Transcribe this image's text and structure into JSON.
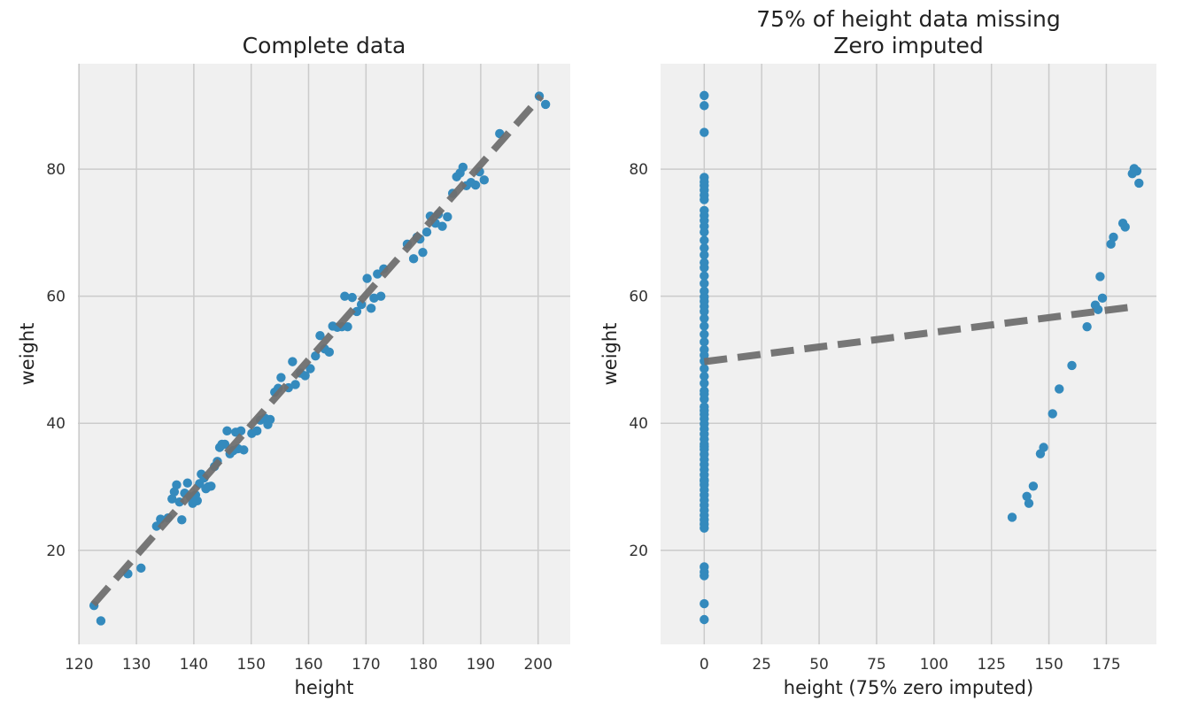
{
  "chart_data": [
    {
      "type": "scatter",
      "title": "Complete data",
      "xlabel": "height",
      "ylabel": "weight",
      "xlim": [
        119.8,
        205.6
      ],
      "ylim": [
        5.2,
        96.6
      ],
      "xticks": [
        120,
        130,
        140,
        150,
        160,
        170,
        180,
        190,
        200
      ],
      "yticks": [
        20,
        40,
        60,
        80
      ],
      "grid": true,
      "colors": {
        "points": "#348abd",
        "fit_line": "#6f6f6f",
        "background": "#f0f0f0",
        "grid": "#cbcbcb"
      },
      "fit_line": {
        "style": "dashed",
        "x": [
          122.5,
          200.5
        ],
        "y": [
          11.5,
          91.5
        ]
      },
      "points": {
        "x": [
          122.6,
          123.8,
          128.5,
          130.8,
          133.5,
          134.2,
          135.5,
          136.2,
          136.6,
          137.0,
          137.5,
          137.9,
          138.4,
          138.9,
          139.4,
          139.8,
          140.3,
          140.6,
          141.0,
          141.3,
          141.8,
          142.1,
          142.5,
          143.0,
          143.6,
          144.1,
          144.5,
          144.9,
          145.4,
          145.8,
          146.3,
          146.9,
          147.3,
          147.7,
          148.2,
          148.7,
          150.1,
          151.0,
          151.6,
          152.4,
          152.9,
          153.3,
          154.1,
          154.7,
          155.2,
          156.5,
          157.2,
          157.7,
          158.6,
          159.4,
          160.3,
          161.2,
          162.0,
          162.8,
          163.6,
          164.2,
          165.0,
          165.8,
          166.3,
          166.8,
          167.6,
          168.4,
          169.2,
          170.2,
          170.9,
          171.4,
          172.0,
          172.6,
          173.1,
          177.2,
          178.3,
          178.9,
          179.4,
          179.9,
          180.6,
          181.2,
          182.1,
          182.6,
          183.3,
          184.2,
          185.1,
          185.8,
          186.4,
          186.9,
          187.5,
          188.3,
          189.1,
          189.8,
          190.6,
          193.3,
          200.2,
          201.3
        ],
        "y": [
          11.3,
          8.9,
          16.3,
          17.2,
          23.8,
          24.9,
          25.1,
          28.1,
          29.2,
          30.3,
          27.6,
          24.8,
          29.0,
          30.6,
          28.4,
          27.4,
          28.7,
          27.8,
          30.5,
          32.0,
          31.4,
          29.7,
          30.0,
          30.1,
          33.2,
          34.0,
          36.2,
          36.7,
          36.7,
          38.8,
          35.2,
          35.7,
          38.6,
          36.0,
          38.8,
          35.8,
          38.4,
          38.8,
          40.5,
          40.8,
          39.8,
          40.6,
          44.9,
          45.5,
          47.2,
          45.6,
          49.7,
          46.1,
          47.9,
          47.5,
          48.6,
          50.6,
          53.8,
          51.7,
          51.2,
          55.3,
          55.1,
          55.2,
          60.0,
          55.2,
          59.8,
          57.6,
          58.7,
          62.8,
          58.1,
          59.7,
          63.5,
          60.0,
          64.3,
          68.2,
          65.9,
          69.3,
          69.0,
          66.9,
          70.1,
          72.6,
          71.5,
          72.9,
          71.0,
          72.5,
          76.2,
          78.8,
          79.4,
          80.3,
          77.4,
          77.9,
          77.5,
          79.6,
          78.3,
          85.6,
          91.5,
          90.2
        ]
      }
    },
    {
      "type": "scatter",
      "title": "75% of height data missing\nZero imputed",
      "title_lines": [
        "75% of height data missing",
        "Zero imputed"
      ],
      "xlabel": "height (75% zero imputed)",
      "ylabel": "weight",
      "xlim": [
        -19.0,
        196.8
      ],
      "ylim": [
        5.2,
        96.6
      ],
      "xticks": [
        0,
        25,
        50,
        75,
        100,
        125,
        150,
        175
      ],
      "yticks": [
        20,
        40,
        60,
        80
      ],
      "grid": true,
      "colors": {
        "points": "#348abd",
        "fit_line": "#6f6f6f",
        "background": "#f0f0f0",
        "grid": "#cbcbcb"
      },
      "fit_line": {
        "style": "dashed",
        "x": [
          0,
          186
        ],
        "y": [
          49.7,
          58.3
        ]
      },
      "points": {
        "x": [
          0,
          0,
          0,
          0,
          0,
          0,
          0,
          0,
          0,
          0,
          0,
          0,
          0,
          0,
          0,
          0,
          0,
          0,
          0,
          0,
          0,
          0,
          0,
          0,
          0,
          0,
          0,
          0,
          0,
          0,
          0,
          0,
          0,
          0,
          0,
          0,
          0,
          0,
          0,
          0,
          0,
          0,
          0,
          0,
          0,
          0,
          0,
          0,
          0,
          0,
          0,
          0,
          0,
          0,
          0,
          0,
          0,
          0,
          0,
          0,
          0,
          0,
          0,
          0,
          0,
          0,
          0,
          0,
          0,
          0,
          0,
          0,
          134.0,
          140.4,
          141.3,
          143.2,
          146.3,
          147.7,
          151.6,
          154.5,
          160.0,
          166.6,
          170.2,
          171.4,
          172.3,
          173.3,
          177.0,
          178.1,
          182.2,
          183.2,
          186.3,
          187.1,
          188.3,
          189.2
        ],
        "y": [
          91.6,
          90.0,
          85.8,
          78.7,
          78.0,
          77.4,
          76.7,
          75.9,
          75.2,
          73.5,
          72.7,
          71.9,
          71.0,
          70.1,
          68.8,
          67.6,
          66.5,
          65.3,
          64.5,
          63.2,
          62.0,
          60.8,
          59.9,
          59.2,
          58.4,
          57.6,
          56.5,
          55.3,
          54.0,
          52.8,
          51.6,
          50.7,
          49.8,
          48.6,
          47.4,
          46.3,
          45.1,
          43.8,
          42.6,
          41.4,
          40.7,
          39.9,
          39.1,
          38.3,
          37.5,
          36.7,
          35.9,
          35.1,
          34.3,
          33.5,
          32.7,
          31.9,
          31.1,
          30.3,
          29.5,
          28.7,
          27.9,
          27.1,
          26.3,
          25.5,
          24.8,
          24.1,
          23.5,
          17.4,
          16.6,
          16.0,
          11.6,
          9.1,
          44.6,
          42.0,
          36.3,
          30.9,
          25.2,
          28.5,
          27.4,
          30.1,
          35.2,
          36.2,
          41.5,
          45.4,
          49.1,
          55.2,
          58.6,
          57.9,
          63.1,
          59.7,
          68.2,
          69.3,
          71.5,
          70.9,
          79.3,
          80.1,
          79.7,
          77.8
        ]
      }
    }
  ]
}
